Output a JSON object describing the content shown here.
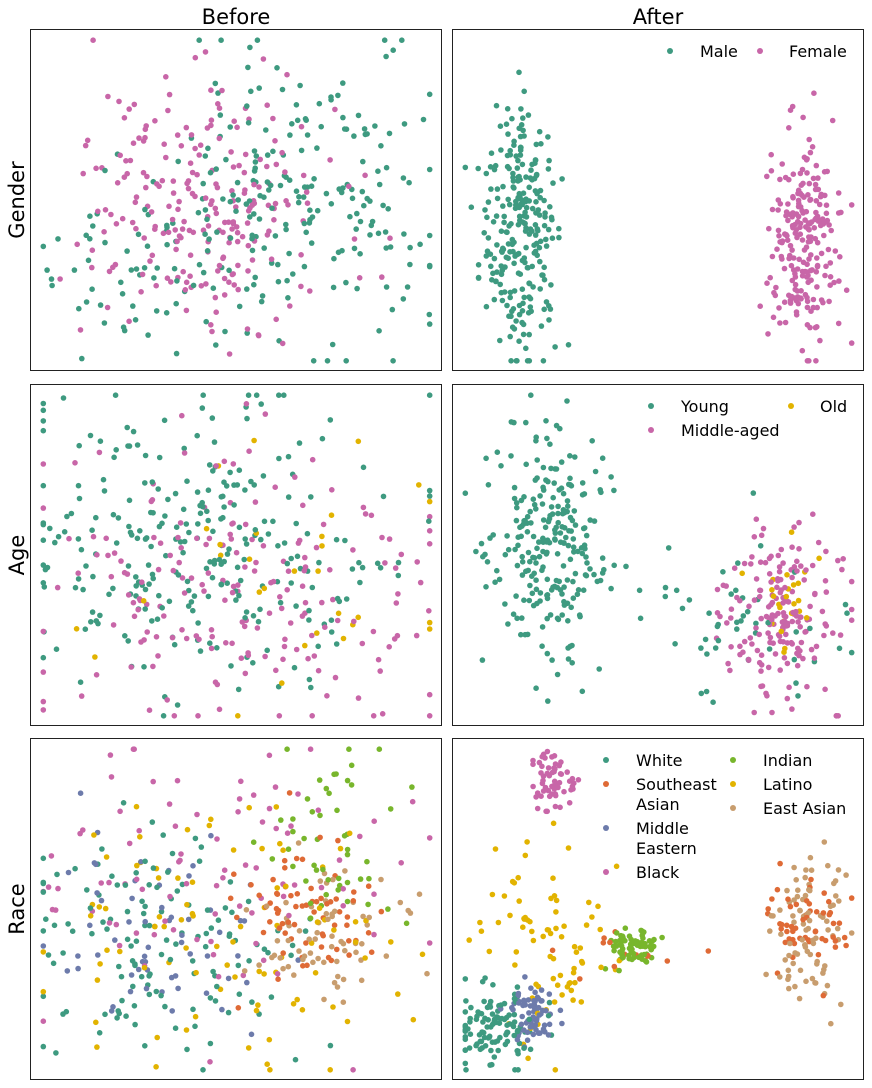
{
  "columns": [
    "Before",
    "After"
  ],
  "rows": [
    "Gender",
    "Age",
    "Race"
  ],
  "colors": {
    "teal": "#3e9a80",
    "pink": "#c866a8",
    "gold": "#e2b300",
    "orange": "#df6a36",
    "slate": "#6d7bab",
    "lime": "#78b62c",
    "tan": "#c89d6e"
  },
  "chart_data": [
    {
      "type": "scatter",
      "row": "Gender",
      "column": "Before",
      "title": "",
      "xlabel": "",
      "ylabel": "Gender",
      "grid": false,
      "axes_ticks": false,
      "series": [
        {
          "name": "Male",
          "color": "#3e9a80",
          "count": 260,
          "clusters": [
            {
              "cx": 0.66,
              "cy": 0.52,
              "sx": 0.17,
              "sy": 0.22,
              "n": 210
            },
            {
              "cx": 0.25,
              "cy": 0.7,
              "sx": 0.12,
              "sy": 0.12,
              "n": 50
            }
          ]
        },
        {
          "name": "Female",
          "color": "#c866a8",
          "count": 230,
          "clusters": [
            {
              "cx": 0.42,
              "cy": 0.53,
              "sx": 0.15,
              "sy": 0.19,
              "n": 230
            }
          ]
        }
      ]
    },
    {
      "type": "scatter",
      "row": "Gender",
      "column": "After",
      "title": "",
      "xlabel": "",
      "ylabel": "",
      "grid": false,
      "axes_ticks": false,
      "legend_position": "top-right",
      "series": [
        {
          "name": "Male",
          "color": "#3e9a80",
          "count": 260,
          "clusters": [
            {
              "cx": 0.165,
              "cy": 0.57,
              "sx": 0.045,
              "sy": 0.19,
              "n": 260
            }
          ]
        },
        {
          "name": "Female",
          "color": "#c866a8",
          "count": 230,
          "clusters": [
            {
              "cx": 0.855,
              "cy": 0.62,
              "sx": 0.04,
              "sy": 0.16,
              "n": 230
            }
          ]
        }
      ]
    },
    {
      "type": "scatter",
      "row": "Age",
      "column": "Before",
      "title": "",
      "xlabel": "",
      "ylabel": "Age",
      "grid": false,
      "axes_ticks": false,
      "series": [
        {
          "name": "Young",
          "color": "#3e9a80",
          "count": 270,
          "clusters": [
            {
              "cx": 0.4,
              "cy": 0.48,
              "sx": 0.23,
              "sy": 0.21,
              "n": 270
            }
          ]
        },
        {
          "name": "Middle-aged",
          "color": "#c866a8",
          "count": 190,
          "clusters": [
            {
              "cx": 0.55,
              "cy": 0.58,
              "sx": 0.24,
              "sy": 0.22,
              "n": 190
            }
          ]
        },
        {
          "name": "Old",
          "color": "#e2b300",
          "count": 30,
          "clusters": [
            {
              "cx": 0.6,
              "cy": 0.55,
              "sx": 0.28,
              "sy": 0.25,
              "n": 30
            }
          ]
        }
      ]
    },
    {
      "type": "scatter",
      "row": "Age",
      "column": "After",
      "title": "",
      "xlabel": "",
      "ylabel": "",
      "grid": false,
      "axes_ticks": false,
      "legend_position": "top-right",
      "series": [
        {
          "name": "Young",
          "color": "#3e9a80",
          "count": 300,
          "clusters": [
            {
              "cx": 0.24,
              "cy": 0.48,
              "sx": 0.07,
              "sy": 0.16,
              "n": 250
            },
            {
              "cx": 0.65,
              "cy": 0.72,
              "sx": 0.13,
              "sy": 0.12,
              "n": 50
            }
          ]
        },
        {
          "name": "Middle-aged",
          "color": "#c866a8",
          "count": 180,
          "clusters": [
            {
              "cx": 0.8,
              "cy": 0.68,
              "sx": 0.07,
              "sy": 0.13,
              "n": 180
            }
          ]
        },
        {
          "name": "Old",
          "color": "#e2b300",
          "count": 24,
          "clusters": [
            {
              "cx": 0.82,
              "cy": 0.63,
              "sx": 0.03,
              "sy": 0.08,
              "n": 24
            }
          ]
        }
      ]
    },
    {
      "type": "scatter",
      "row": "Race",
      "column": "Before",
      "title": "",
      "xlabel": "",
      "ylabel": "Race",
      "grid": false,
      "axes_ticks": false,
      "series": [
        {
          "name": "White",
          "color": "#3e9a80",
          "count": 130,
          "clusters": [
            {
              "cx": 0.3,
              "cy": 0.62,
              "sx": 0.18,
              "sy": 0.18,
              "n": 130
            }
          ]
        },
        {
          "name": "Southeast Asian",
          "color": "#df6a36",
          "count": 70,
          "clusters": [
            {
              "cx": 0.66,
              "cy": 0.5,
              "sx": 0.09,
              "sy": 0.11,
              "n": 70
            }
          ]
        },
        {
          "name": "Middle Eastern",
          "color": "#6d7bab",
          "count": 60,
          "clusters": [
            {
              "cx": 0.32,
              "cy": 0.6,
              "sx": 0.12,
              "sy": 0.15,
              "n": 60
            }
          ]
        },
        {
          "name": "Black",
          "color": "#c866a8",
          "count": 90,
          "clusters": [
            {
              "cx": 0.45,
              "cy": 0.38,
              "sx": 0.24,
              "sy": 0.22,
              "n": 90
            }
          ]
        },
        {
          "name": "Indian",
          "color": "#78b62c",
          "count": 50,
          "clusters": [
            {
              "cx": 0.72,
              "cy": 0.3,
              "sx": 0.09,
              "sy": 0.14,
              "n": 50
            }
          ]
        },
        {
          "name": "Latino",
          "color": "#e2b300",
          "count": 90,
          "clusters": [
            {
              "cx": 0.45,
              "cy": 0.55,
              "sx": 0.22,
              "sy": 0.2,
              "n": 90
            }
          ]
        },
        {
          "name": "East Asian",
          "color": "#c89d6e",
          "count": 70,
          "clusters": [
            {
              "cx": 0.73,
              "cy": 0.58,
              "sx": 0.1,
              "sy": 0.08,
              "n": 70
            }
          ]
        }
      ]
    },
    {
      "type": "scatter",
      "row": "Race",
      "column": "After",
      "title": "",
      "xlabel": "",
      "ylabel": "",
      "grid": false,
      "axes_ticks": false,
      "legend_position": "top-right",
      "series": [
        {
          "name": "White",
          "color": "#3e9a80",
          "count": 110,
          "clusters": [
            {
              "cx": 0.1,
              "cy": 0.85,
              "sx": 0.06,
              "sy": 0.05,
              "n": 110
            }
          ]
        },
        {
          "name": "Southeast Asian",
          "color": "#df6a36",
          "count": 70,
          "clusters": [
            {
              "cx": 0.86,
              "cy": 0.54,
              "sx": 0.05,
              "sy": 0.06,
              "n": 55
            },
            {
              "cx": 0.44,
              "cy": 0.63,
              "sx": 0.1,
              "sy": 0.03,
              "n": 15
            }
          ]
        },
        {
          "name": "Middle Eastern",
          "color": "#6d7bab",
          "count": 70,
          "clusters": [
            {
              "cx": 0.19,
              "cy": 0.81,
              "sx": 0.03,
              "sy": 0.04,
              "n": 70
            }
          ]
        },
        {
          "name": "Black",
          "color": "#c866a8",
          "count": 60,
          "clusters": [
            {
              "cx": 0.24,
              "cy": 0.11,
              "sx": 0.025,
              "sy": 0.04,
              "n": 60
            }
          ]
        },
        {
          "name": "Indian",
          "color": "#78b62c",
          "count": 70,
          "clusters": [
            {
              "cx": 0.43,
              "cy": 0.61,
              "sx": 0.035,
              "sy": 0.025,
              "n": 70
            }
          ]
        },
        {
          "name": "Latino",
          "color": "#e2b300",
          "count": 80,
          "clusters": [
            {
              "cx": 0.23,
              "cy": 0.6,
              "sx": 0.07,
              "sy": 0.15,
              "n": 80
            }
          ]
        },
        {
          "name": "East Asian",
          "color": "#c89d6e",
          "count": 90,
          "clusters": [
            {
              "cx": 0.87,
              "cy": 0.57,
              "sx": 0.05,
              "sy": 0.12,
              "n": 90
            }
          ]
        }
      ]
    }
  ]
}
